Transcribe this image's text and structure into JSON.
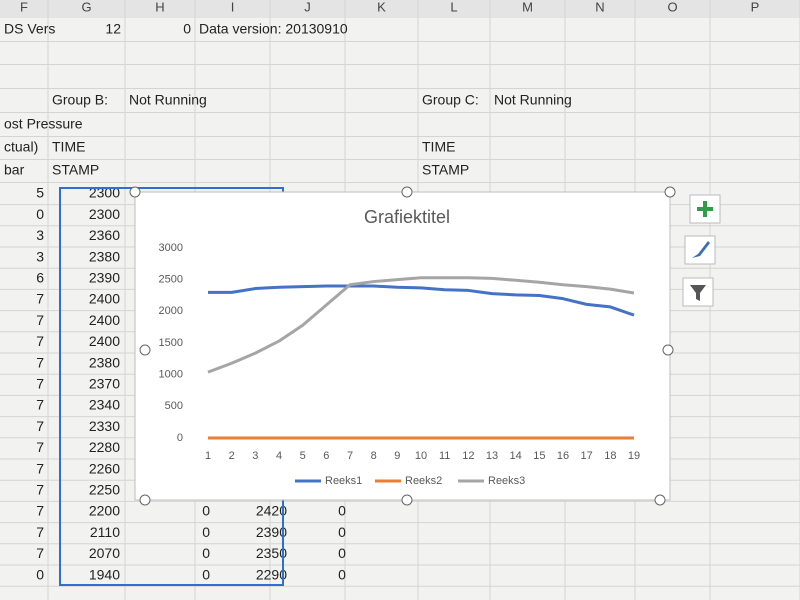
{
  "sheet": {
    "columns": [
      "F",
      "G",
      "H",
      "I",
      "J",
      "K",
      "L",
      "M",
      "N",
      "O",
      "P"
    ],
    "header_rows": [
      [
        "DS Vers",
        12,
        0,
        "Data version: 20130910"
      ],
      [],
      [],
      [
        null,
        "Group B:",
        "Not Running",
        null,
        null,
        null,
        "Group C:",
        "Not Running"
      ],
      [
        "ost Pressure"
      ],
      [
        "ctual)",
        "TIME",
        null,
        null,
        null,
        null,
        "TIME"
      ],
      [
        "bar",
        "STAMP",
        null,
        null,
        null,
        null,
        "STAMP"
      ]
    ],
    "f_values": [
      5,
      0,
      3,
      3,
      6,
      7,
      7,
      7,
      7,
      7,
      7,
      7,
      7,
      7,
      7,
      7,
      7,
      7,
      0
    ],
    "k_tail": [
      0,
      0,
      0,
      0
    ]
  },
  "chart_data": {
    "type": "line",
    "title": "Grafiektitel",
    "categories": [
      "1",
      "2",
      "3",
      "4",
      "5",
      "6",
      "7",
      "8",
      "9",
      "10",
      "11",
      "12",
      "13",
      "14",
      "15",
      "16",
      "17",
      "18",
      "19"
    ],
    "series": [
      {
        "name": "Reeks1",
        "color": "#4472c4",
        "values": [
          2300,
          2300,
          2360,
          2380,
          2390,
          2400,
          2400,
          2400,
          2380,
          2370,
          2340,
          2330,
          2280,
          2260,
          2250,
          2200,
          2110,
          2070,
          1940
        ]
      },
      {
        "name": "Reeks2",
        "color": "#ed7d31",
        "values": [
          0,
          0,
          0,
          0,
          0,
          0,
          0,
          0,
          0,
          0,
          0,
          0,
          0,
          0,
          0,
          0,
          0,
          0,
          0
        ]
      },
      {
        "name": "Reeks3",
        "color": "#a5a5a5",
        "values": [
          1040,
          1180,
          1340,
          1530,
          1780,
          2100,
          2420,
          2470,
          2500,
          2530,
          2530,
          2530,
          2520,
          2490,
          2460,
          2420,
          2390,
          2350,
          2290
        ]
      }
    ],
    "ylim": [
      0,
      3000
    ],
    "yticks": [
      0,
      500,
      1000,
      1500,
      2000,
      2500,
      3000
    ],
    "legend": "bottom"
  }
}
